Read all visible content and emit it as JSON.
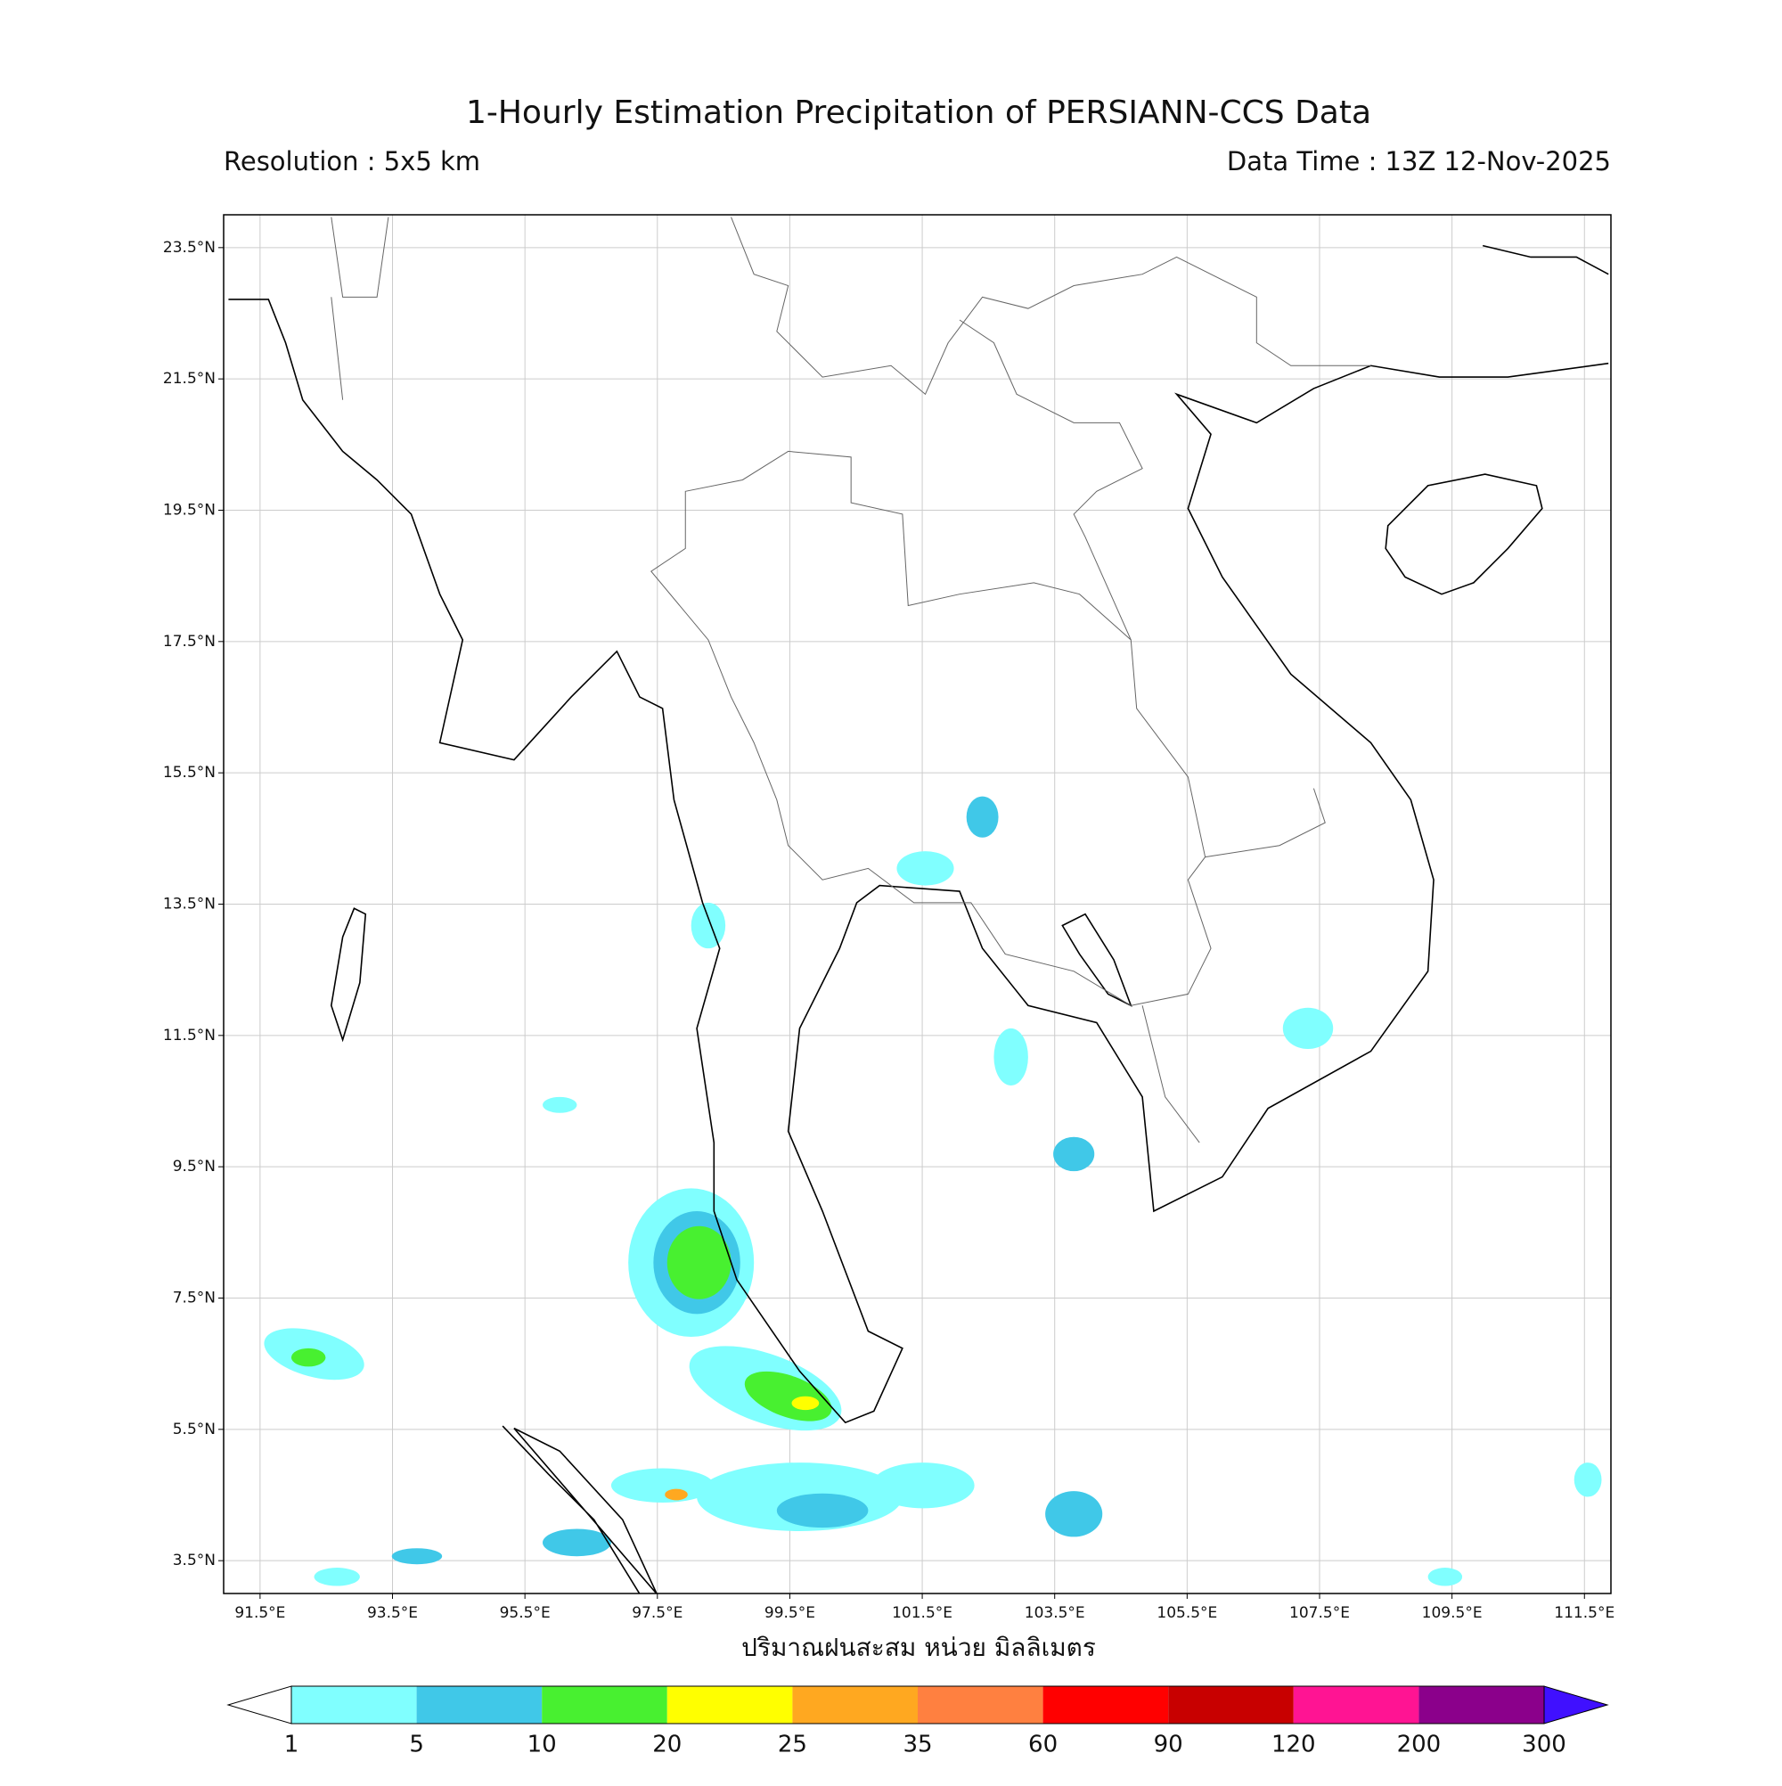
{
  "chart_data": {
    "type": "map",
    "title": "1-Hourly Estimation Precipitation of PERSIANN-CCS Data",
    "subtitle_left": "Resolution : 5x5 km",
    "subtitle_right": "Data Time : 13Z 12-Nov-2025",
    "xlabel": "ปริมาณฝนสะสม หน่วย มิลลิเมตร",
    "xlim": [
      90.95,
      111.9
    ],
    "ylim": [
      3,
      24
    ],
    "xticks": [
      {
        "value": 91.5,
        "label": "91.5°E"
      },
      {
        "value": 93.5,
        "label": "93.5°E"
      },
      {
        "value": 95.5,
        "label": "95.5°E"
      },
      {
        "value": 97.5,
        "label": "97.5°E"
      },
      {
        "value": 99.5,
        "label": "99.5°E"
      },
      {
        "value": 101.5,
        "label": "101.5°E"
      },
      {
        "value": 103.5,
        "label": "103.5°E"
      },
      {
        "value": 105.5,
        "label": "105.5°E"
      },
      {
        "value": 107.5,
        "label": "107.5°E"
      },
      {
        "value": 109.5,
        "label": "109.5°E"
      },
      {
        "value": 111.5,
        "label": "111.5°E"
      }
    ],
    "yticks": [
      {
        "value": 23.5,
        "label": "23.5°N"
      },
      {
        "value": 21.5,
        "label": "21.5°N"
      },
      {
        "value": 19.5,
        "label": "19.5°N"
      },
      {
        "value": 17.5,
        "label": "17.5°N"
      },
      {
        "value": 15.5,
        "label": "15.5°N"
      },
      {
        "value": 13.5,
        "label": "13.5°N"
      },
      {
        "value": 11.5,
        "label": "11.5°N"
      },
      {
        "value": 9.5,
        "label": "9.5°N"
      },
      {
        "value": 7.5,
        "label": "7.5°N"
      },
      {
        "value": 5.5,
        "label": "5.5°N"
      },
      {
        "value": 3.5,
        "label": "3.5°N"
      }
    ],
    "grid": true,
    "colorbar": {
      "levels": [
        1,
        5,
        10,
        20,
        25,
        35,
        60,
        90,
        120,
        200,
        300
      ],
      "colors": [
        "#80ffff",
        "#40c8e8",
        "#48f030",
        "#ffff00",
        "#ffa820",
        "#ff8040",
        "#ff0000",
        "#c80000",
        "#ff1493",
        "#8b008b"
      ],
      "under_color": "#ffffff",
      "over_color": "#4010ff"
    }
  }
}
